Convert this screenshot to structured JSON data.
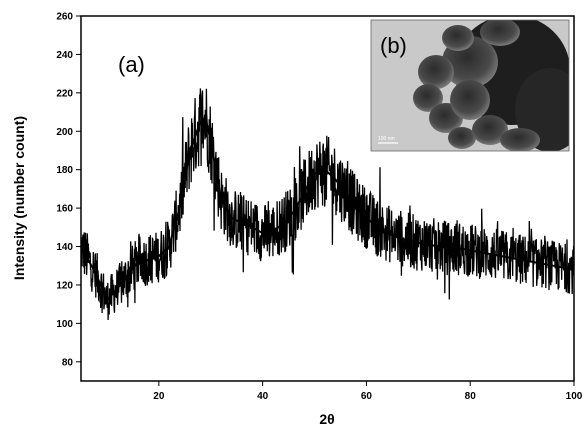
{
  "chart_data": {
    "type": "line",
    "xlabel": "2θ",
    "ylabel": "Intensity (number count)",
    "xlim": [
      5,
      100
    ],
    "ylim": [
      70,
      260
    ],
    "x_ticks": [
      "20",
      "40",
      "60",
      "80",
      "100"
    ],
    "y_ticks": [
      "80",
      "100",
      "120",
      "140",
      "160",
      "180",
      "200",
      "220",
      "240",
      "260"
    ],
    "grid": false,
    "series": [
      {
        "color": "#000000",
        "x": [
          5,
          8,
          10,
          12,
          14,
          16,
          18,
          20,
          22,
          24,
          26,
          28,
          29,
          30,
          32,
          34,
          36,
          38,
          40,
          42,
          44,
          46,
          48,
          50,
          52,
          54,
          56,
          58,
          60,
          62,
          64,
          66,
          68,
          70,
          72,
          74,
          76,
          78,
          80,
          82,
          84,
          86,
          88,
          90,
          92,
          94,
          96,
          98,
          100
        ],
        "values": [
          140,
          125,
          112,
          118,
          125,
          132,
          133,
          135,
          140,
          160,
          190,
          205,
          207,
          195,
          165,
          155,
          152,
          150,
          147,
          148,
          152,
          158,
          168,
          178,
          180,
          175,
          168,
          160,
          155,
          150,
          147,
          145,
          143,
          142,
          141,
          140,
          139,
          139,
          138,
          137,
          136,
          135,
          134,
          133,
          132,
          131,
          130,
          129,
          128
        ]
      }
    ],
    "annotations": [
      "(a)",
      "(b)"
    ],
    "inset": {
      "type": "TEM micrograph",
      "scale_bar": "100 nm"
    }
  }
}
